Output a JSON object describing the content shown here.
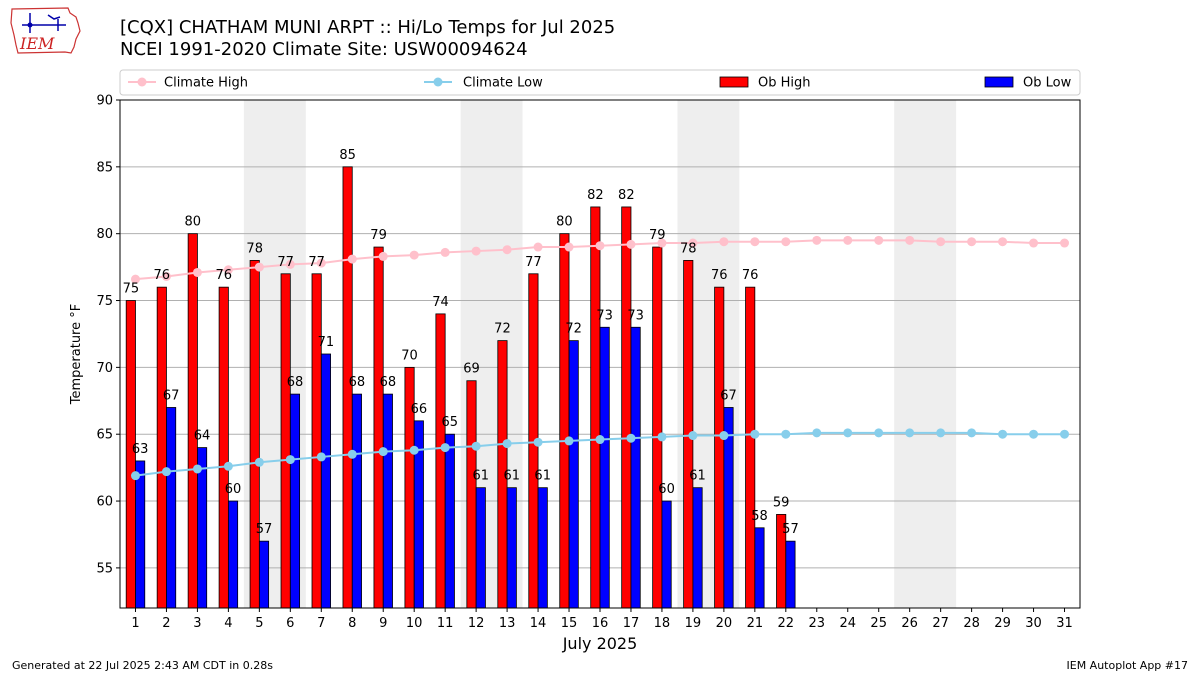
{
  "header": {
    "title_line1": "[CQX] CHATHAM MUNI ARPT :: Hi/Lo Temps for Jul 2025",
    "title_line2": "NCEI 1991-2020 Climate Site: USW00094624",
    "logo_text": "IEM"
  },
  "footer": {
    "generated": "Generated at 22 Jul 2025 2:43 AM CDT in 0.28s",
    "app": "IEM Autoplot App #17"
  },
  "colors": {
    "ob_high": "#ff0000",
    "ob_low": "#0000ff",
    "climate_high": "#ffc0cb",
    "climate_low": "#87ceeb",
    "weekend_shade": "#eeeeee",
    "grid": "#b0b0b0"
  },
  "chart_data": {
    "type": "bar",
    "xlabel": "July 2025",
    "ylabel": "Temperature °F",
    "ylim": [
      52,
      90
    ],
    "yticks": [
      55,
      60,
      65,
      70,
      75,
      80,
      85,
      90
    ],
    "grid": "horizontal",
    "legend_position": "top",
    "categories": [
      "1",
      "2",
      "3",
      "4",
      "5",
      "6",
      "7",
      "8",
      "9",
      "10",
      "11",
      "12",
      "13",
      "14",
      "15",
      "16",
      "17",
      "18",
      "19",
      "20",
      "21",
      "22",
      "23",
      "24",
      "25",
      "26",
      "27",
      "28",
      "29",
      "30",
      "31"
    ],
    "shaded_weekends": [
      [
        5,
        6
      ],
      [
        12,
        13
      ],
      [
        19,
        20
      ],
      [
        26,
        27
      ]
    ],
    "series": [
      {
        "name": "Ob High",
        "kind": "bar",
        "color": "#ff0000",
        "values": [
          75,
          76,
          80,
          76,
          78,
          77,
          77,
          85,
          79,
          70,
          74,
          69,
          72,
          77,
          80,
          82,
          82,
          79,
          78,
          76,
          76,
          59,
          null,
          null,
          null,
          null,
          null,
          null,
          null,
          null,
          null
        ]
      },
      {
        "name": "Ob Low",
        "kind": "bar",
        "color": "#0000ff",
        "values": [
          63,
          67,
          64,
          60,
          57,
          68,
          71,
          68,
          68,
          66,
          65,
          61,
          61,
          61,
          72,
          73,
          73,
          60,
          61,
          67,
          58,
          57,
          null,
          null,
          null,
          null,
          null,
          null,
          null,
          null,
          null
        ]
      },
      {
        "name": "Climate High",
        "kind": "line",
        "color": "#ffc0cb",
        "values": [
          76.6,
          76.8,
          77.1,
          77.3,
          77.5,
          77.7,
          77.8,
          78.1,
          78.3,
          78.4,
          78.6,
          78.7,
          78.8,
          79.0,
          79.0,
          79.1,
          79.2,
          79.3,
          79.3,
          79.4,
          79.4,
          79.4,
          79.5,
          79.5,
          79.5,
          79.5,
          79.4,
          79.4,
          79.4,
          79.3,
          79.3
        ]
      },
      {
        "name": "Climate Low",
        "kind": "line",
        "color": "#87ceeb",
        "values": [
          61.9,
          62.2,
          62.4,
          62.6,
          62.9,
          63.1,
          63.3,
          63.5,
          63.7,
          63.8,
          64.0,
          64.1,
          64.3,
          64.4,
          64.5,
          64.6,
          64.7,
          64.8,
          64.9,
          64.9,
          65.0,
          65.0,
          65.1,
          65.1,
          65.1,
          65.1,
          65.1,
          65.1,
          65.0,
          65.0,
          65.0
        ]
      }
    ]
  }
}
